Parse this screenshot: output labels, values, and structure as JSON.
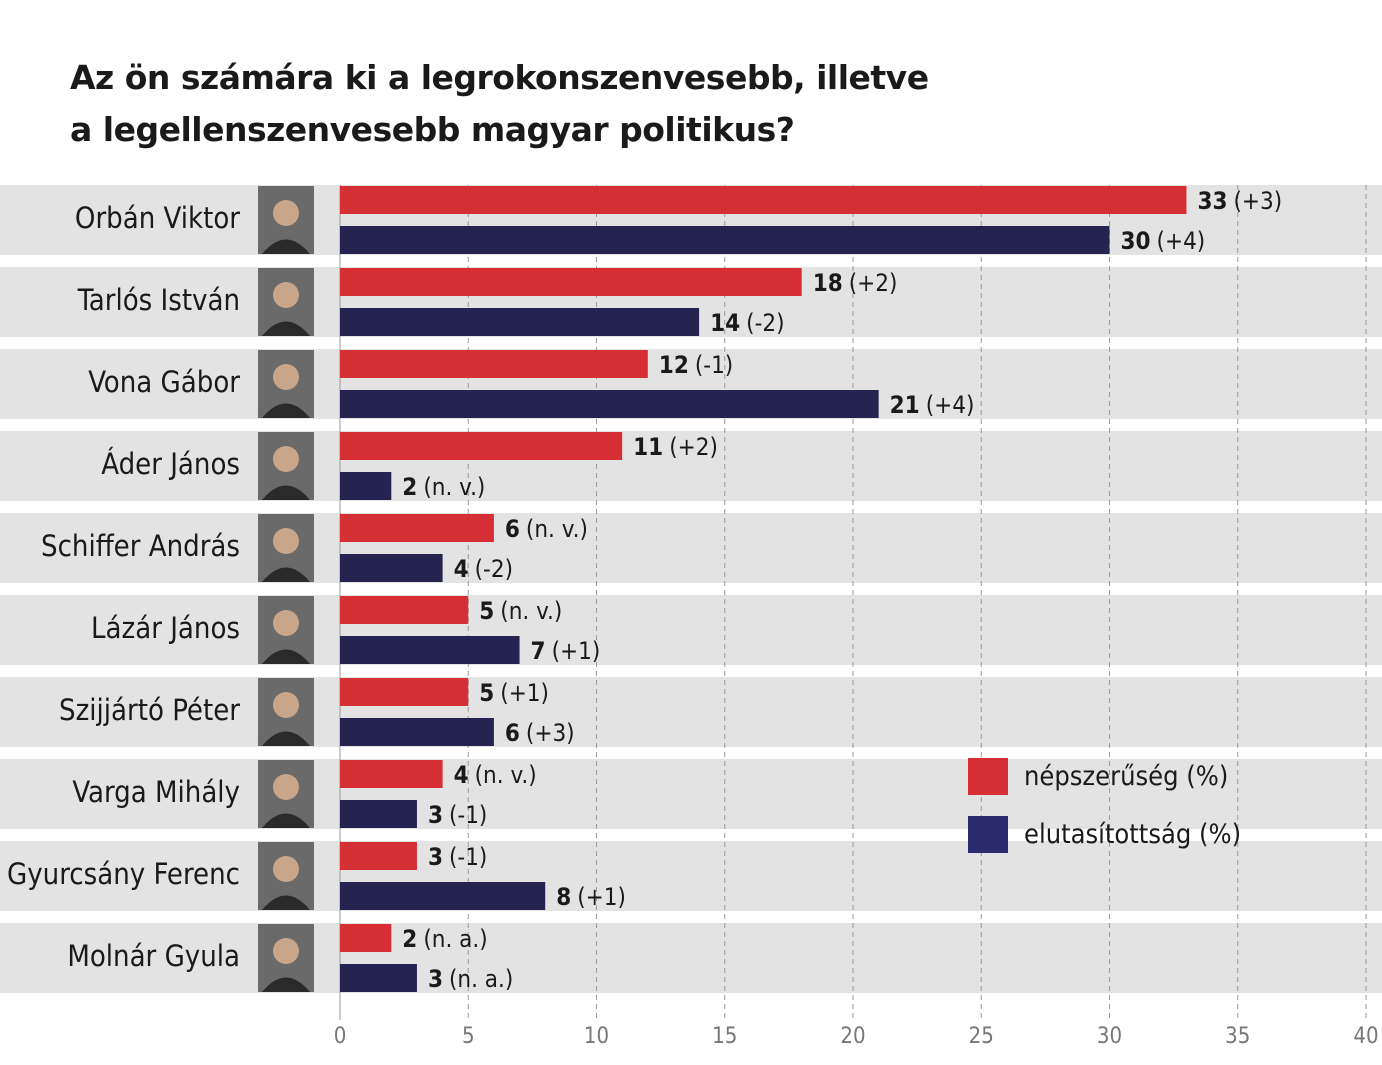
{
  "title": {
    "line1": "Az ön számára ki a legrokonszenvesebb, illetve",
    "line2": "a legellenszenvesebb magyar politikus?"
  },
  "chart_data": {
    "type": "bar",
    "orientation": "horizontal",
    "title": "Az ön számára ki a legrokonszenvesebb, illetve a legellenszenvesebb magyar politikus?",
    "xlim": [
      0,
      40
    ],
    "xticks": [
      0,
      5,
      10,
      15,
      20,
      25,
      30,
      35,
      40
    ],
    "grid": "vertical-dashed",
    "categories": [
      "Orbán Viktor",
      "Tarlós István",
      "Vona Gábor",
      "Áder János",
      "Schiffer András",
      "Lázár János",
      "Szijjártó Péter",
      "Varga Mihály",
      "Gyurcsány Ferenc",
      "Molnár Gyula"
    ],
    "series": [
      {
        "name": "népszerűség (%)",
        "color": "#d62e35",
        "values": [
          33,
          18,
          12,
          11,
          6,
          5,
          5,
          4,
          3,
          2
        ],
        "changes": [
          "(+3)",
          "(+2)",
          "(-1)",
          "(+2)",
          "(n. v.)",
          "(n. v.)",
          "(+1)",
          "(n. v.)",
          "(-1)",
          "(n. a.)"
        ]
      },
      {
        "name": "elutasítottság (%)",
        "color": "#252450",
        "values": [
          30,
          14,
          21,
          2,
          4,
          7,
          6,
          3,
          8,
          3
        ],
        "changes": [
          "(+4)",
          "(-2)",
          "(+4)",
          "(n. v.)",
          "(-2)",
          "(+1)",
          "(+3)",
          "(-1)",
          "(+1)",
          "(n. a.)"
        ]
      }
    ],
    "legend": [
      {
        "label": "népszerűség (%)",
        "color": "#d62e35"
      },
      {
        "label": "elutasítottság (%)",
        "color": "#2a2a6e"
      }
    ],
    "legend_position": "right-middle"
  }
}
